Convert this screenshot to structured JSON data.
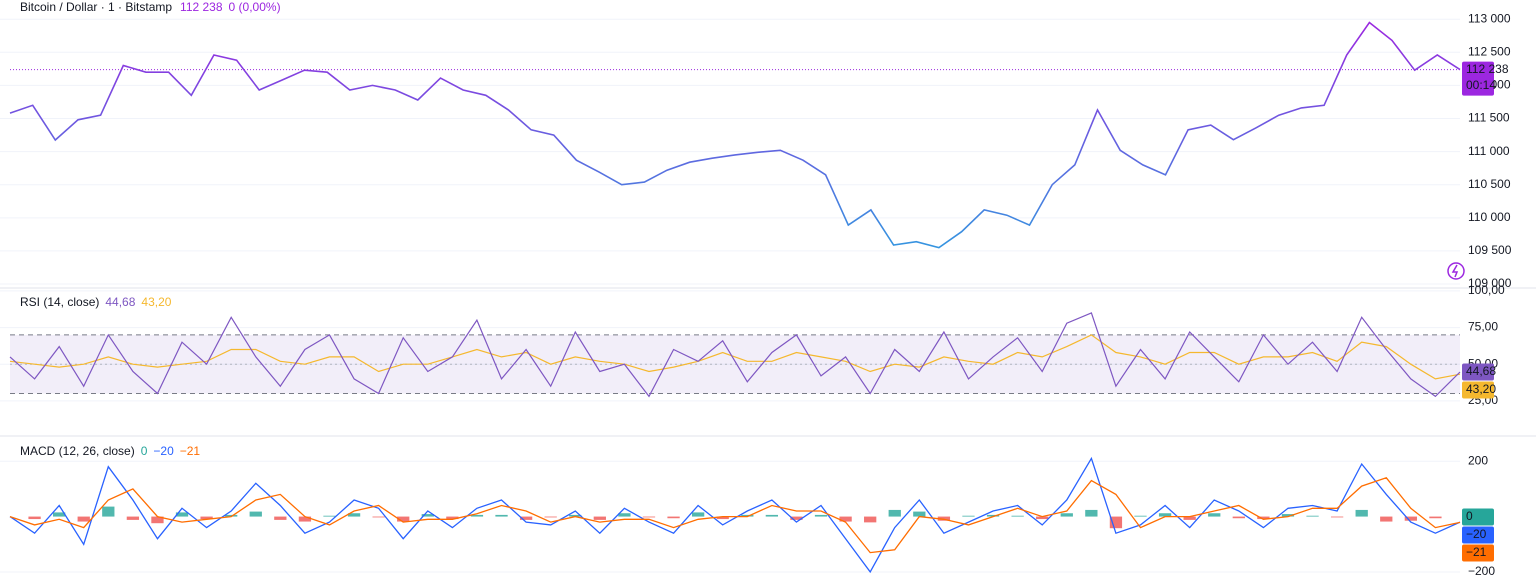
{
  "chart_data": [
    {
      "type": "line",
      "title": "Bitcoin / Dollar · 1 · Bitstamp",
      "last_price": {
        "value": 112238,
        "label": "112 238"
      },
      "change": "0 (0,00%)",
      "countdown": "00:14",
      "colors": [
        "#9c27e0",
        "#2f9be0"
      ],
      "accent": "#9c27e0",
      "values": [
        111582,
        111700,
        111175,
        111480,
        111550,
        112300,
        112200,
        112200,
        111850,
        112460,
        112380,
        111930,
        112080,
        112230,
        112200,
        111930,
        112000,
        111930,
        111780,
        112110,
        111930,
        111850,
        111630,
        111330,
        111250,
        110870,
        110690,
        110500,
        110540,
        110720,
        110840,
        110900,
        110950,
        110990,
        111020,
        110870,
        110650,
        109890,
        110120,
        109590,
        109640,
        109550,
        109790,
        110120,
        110040,
        109890,
        110500,
        110800,
        111630,
        111020,
        110800,
        110650,
        111330,
        111400,
        111180,
        111360,
        111550,
        111660,
        111700,
        112460,
        112950,
        112680,
        112230,
        112460,
        112238
      ],
      "ylim": [
        108940,
        113290
      ],
      "yticks": [
        {
          "value": 109000,
          "label": "109 000"
        },
        {
          "value": 109500,
          "label": "109 500"
        },
        {
          "value": 110000,
          "label": "110 000"
        },
        {
          "value": 110500,
          "label": "110 500"
        },
        {
          "value": 111000,
          "label": "111 000"
        },
        {
          "value": 111500,
          "label": "111 500"
        },
        {
          "value": 112000,
          "label": "112 000"
        },
        {
          "value": 112500,
          "label": "112 500"
        },
        {
          "value": 113000,
          "label": "113 000"
        }
      ],
      "grid": true
    },
    {
      "type": "line",
      "title": "RSI (14, close)",
      "series": [
        {
          "color": "#7e57c2",
          "last_label": "44,68",
          "values": [
            55,
            40,
            62,
            35,
            70,
            45,
            30,
            65,
            50,
            82,
            55,
            35,
            60,
            70,
            40,
            30,
            68,
            45,
            55,
            80,
            40,
            60,
            35,
            72,
            45,
            50,
            28,
            60,
            52,
            66,
            38,
            58,
            70,
            42,
            55,
            30,
            60,
            45,
            72,
            40,
            55,
            68,
            45,
            78,
            85,
            35,
            60,
            40,
            72,
            55,
            38,
            70,
            50,
            65,
            45,
            82,
            60,
            40,
            28,
            44.68
          ]
        },
        {
          "color": "#f5b82e",
          "last_label": "43,20",
          "values": [
            52,
            50,
            48,
            50,
            55,
            50,
            48,
            50,
            52,
            60,
            60,
            52,
            50,
            55,
            55,
            45,
            50,
            50,
            55,
            60,
            55,
            58,
            50,
            55,
            52,
            50,
            45,
            48,
            52,
            58,
            52,
            52,
            58,
            55,
            52,
            45,
            50,
            48,
            55,
            52,
            50,
            58,
            55,
            62,
            70,
            58,
            55,
            50,
            58,
            58,
            50,
            55,
            55,
            58,
            52,
            65,
            62,
            50,
            40,
            43.2
          ]
        }
      ],
      "band": [
        30,
        70
      ],
      "midline": 50,
      "band_color": "#7e57c2",
      "ylim": [
        1,
        102
      ],
      "yticks": [
        {
          "value": 25,
          "label": "25,00"
        },
        {
          "value": 50,
          "label": "50,00"
        },
        {
          "value": 75,
          "label": "75,00"
        },
        {
          "value": 100,
          "label": "100,00"
        }
      ],
      "grid": true
    },
    {
      "type": "macd",
      "title": "MACD (12, 26, close)",
      "histogram": {
        "color_up": "#26a69a",
        "color_down": "#ef5350",
        "last_label": "0",
        "values": [
          0,
          -9,
          15,
          -18,
          36,
          -12,
          -24,
          15,
          -9,
          6,
          18,
          -12,
          -18,
          3,
          12,
          -3,
          -18,
          9,
          -9,
          6,
          6,
          -12,
          -3,
          6,
          -12,
          12,
          -3,
          -6,
          15,
          -9,
          6,
          6,
          -12,
          6,
          -18,
          -21,
          24,
          18,
          -15,
          3,
          6,
          3,
          -9,
          12,
          24,
          -42,
          3,
          12,
          -12,
          12,
          -6,
          -9,
          9,
          3,
          -3,
          24,
          -18,
          -15,
          -6,
          0
        ]
      },
      "series": [
        {
          "color": "#2962ff",
          "last_label": "−20",
          "values": [
            0,
            -60,
            40,
            -100,
            180,
            60,
            -80,
            30,
            -40,
            20,
            120,
            40,
            -60,
            -20,
            60,
            30,
            -80,
            20,
            -40,
            30,
            60,
            -20,
            -30,
            20,
            -60,
            30,
            -20,
            -60,
            40,
            -30,
            20,
            60,
            -20,
            40,
            -80,
            -200,
            -40,
            60,
            -60,
            -20,
            20,
            40,
            -30,
            60,
            210,
            -60,
            -30,
            40,
            -40,
            60,
            20,
            -40,
            30,
            40,
            20,
            190,
            80,
            -20,
            -60,
            -20
          ]
        },
        {
          "color": "#ff6d00",
          "last_label": "−21",
          "values": [
            0,
            -30,
            -10,
            -40,
            60,
            100,
            0,
            -20,
            -10,
            0,
            60,
            80,
            0,
            -30,
            20,
            40,
            -20,
            -10,
            -10,
            10,
            40,
            20,
            -20,
            0,
            -20,
            -10,
            -10,
            -40,
            -10,
            0,
            0,
            40,
            20,
            20,
            -20,
            -130,
            -120,
            0,
            -10,
            -30,
            0,
            30,
            0,
            20,
            130,
            80,
            -40,
            0,
            0,
            20,
            40,
            -10,
            0,
            30,
            30,
            110,
            140,
            30,
            -40,
            -21
          ]
        }
      ],
      "ylim": [
        -258,
        291
      ],
      "yticks": [
        {
          "value": -200,
          "label": "−200"
        },
        200
      ],
      "grid": true
    }
  ]
}
